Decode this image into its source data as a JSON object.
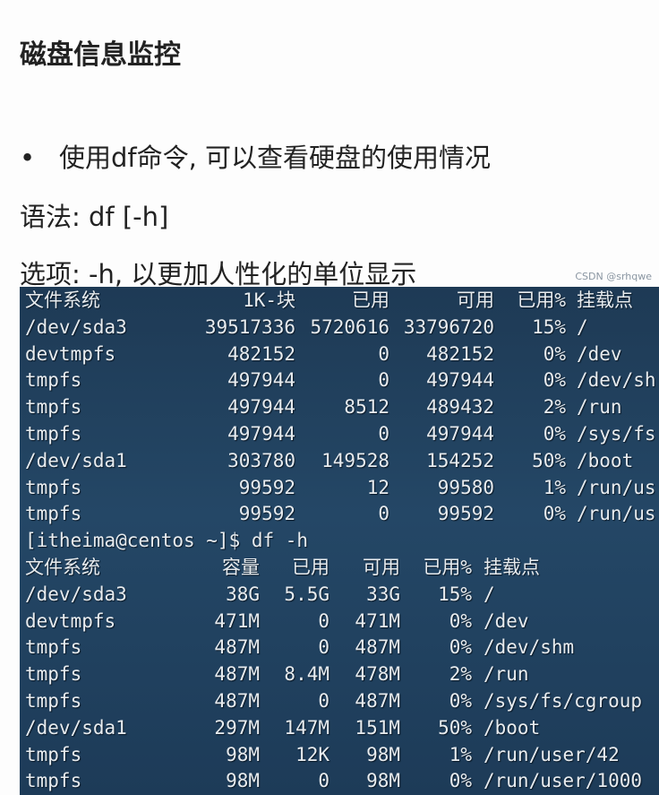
{
  "title": "磁盘信息监控",
  "bullet": {
    "symbol": "•",
    "text": "使用df命令, 可以查看硬盘的使用情况"
  },
  "syntax": "语法: df [-h]",
  "options": "选项: -h, 以更加人性化的单位显示",
  "terminal": {
    "table1": {
      "header": [
        "文件系统",
        "1K-块",
        "已用",
        "可用",
        "已用%",
        "挂载点"
      ],
      "rows": [
        [
          "/dev/sda3",
          "39517336",
          "5720616",
          "33796720",
          "15%",
          "/"
        ],
        [
          "devtmpfs",
          "482152",
          "0",
          "482152",
          "0%",
          "/dev"
        ],
        [
          "tmpfs",
          "497944",
          "0",
          "497944",
          "0%",
          "/dev/sh"
        ],
        [
          "tmpfs",
          "497944",
          "8512",
          "489432",
          "2%",
          "/run"
        ],
        [
          "tmpfs",
          "497944",
          "0",
          "497944",
          "0%",
          "/sys/fs"
        ],
        [
          "/dev/sda1",
          "303780",
          "149528",
          "154252",
          "50%",
          "/boot"
        ],
        [
          "tmpfs",
          "99592",
          "12",
          "99580",
          "1%",
          "/run/us"
        ],
        [
          "tmpfs",
          "99592",
          "0",
          "99592",
          "0%",
          "/run/us"
        ]
      ]
    },
    "prompt": "[itheima@centos ~]$ df -h",
    "table2": {
      "header": [
        "文件系统",
        "容量",
        "已用",
        "可用",
        "已用%",
        "挂载点"
      ],
      "rows": [
        [
          "/dev/sda3",
          "38G",
          "5.5G",
          "33G",
          "15%",
          "/"
        ],
        [
          "devtmpfs",
          "471M",
          "0",
          "471M",
          "0%",
          "/dev"
        ],
        [
          "tmpfs",
          "487M",
          "0",
          "487M",
          "0%",
          "/dev/shm"
        ],
        [
          "tmpfs",
          "487M",
          "8.4M",
          "478M",
          "2%",
          "/run"
        ],
        [
          "tmpfs",
          "487M",
          "0",
          "487M",
          "0%",
          "/sys/fs/cgroup"
        ],
        [
          "/dev/sda1",
          "297M",
          "147M",
          "151M",
          "50%",
          "/boot"
        ],
        [
          "tmpfs",
          "98M",
          "12K",
          "98M",
          "1%",
          "/run/user/42"
        ],
        [
          "tmpfs",
          "98M",
          "0",
          "98M",
          "0%",
          "/run/user/1000"
        ]
      ]
    },
    "watermark": "CSDN @srhqwe"
  }
}
